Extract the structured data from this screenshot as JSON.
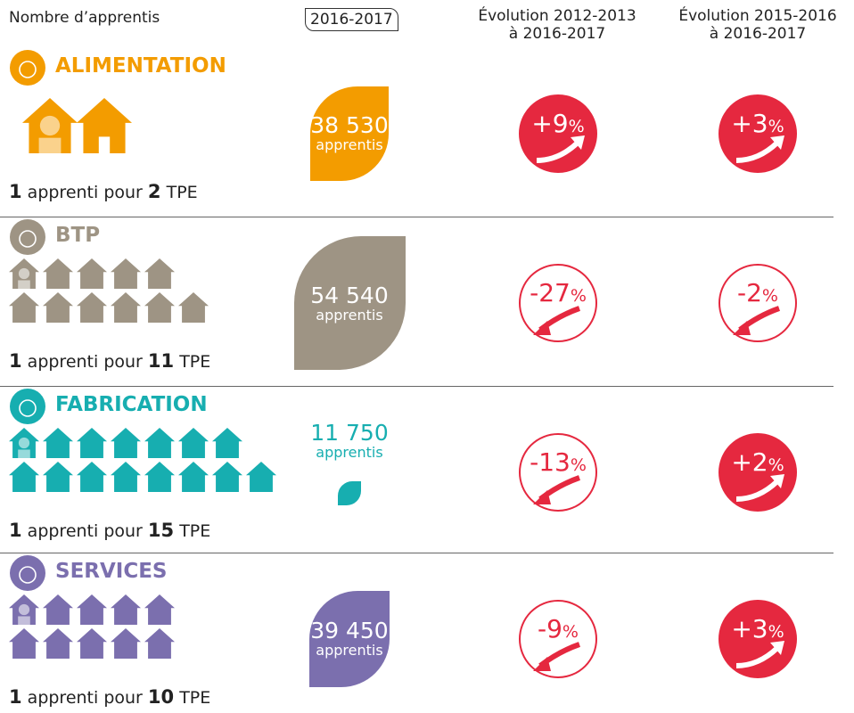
{
  "header": {
    "count_label": "Nombre d’apprentis",
    "year": "2016-2017",
    "evolution_long": [
      "Évolution 2012-2013",
      "à 2016-2017"
    ],
    "evolution_short": [
      "Évolution 2015-2016",
      "à 2016-2017"
    ]
  },
  "sectors": [
    {
      "name": "ALIMENTATION",
      "color": "#f39c00",
      "apprentices": {
        "value": 38530,
        "label": "38 530"
      },
      "unit": "apprentis",
      "ratio": {
        "apprentice": "1",
        "text": "apprenti pour",
        "tpe": 2,
        "suffix": "TPE"
      },
      "evolution_long": {
        "value": "+9",
        "unit": "%"
      },
      "evolution_short": {
        "value": "+3",
        "unit": "%"
      }
    },
    {
      "name": "BTP",
      "color": "#9e9484",
      "apprentices": {
        "value": 54540,
        "label": "54 540"
      },
      "unit": "apprentis",
      "ratio": {
        "apprentice": "1",
        "text": "apprenti pour",
        "tpe": 11,
        "suffix": "TPE"
      },
      "evolution_long": {
        "value": "-27",
        "unit": "%"
      },
      "evolution_short": {
        "value": "-2",
        "unit": "%"
      }
    },
    {
      "name": "FABRICATION",
      "color": "#17aeb0",
      "apprentices": {
        "value": 11750,
        "label": "11 750"
      },
      "unit": "apprentis",
      "ratio": {
        "apprentice": "1",
        "text": "apprenti pour",
        "tpe": 15,
        "suffix": "TPE"
      },
      "evolution_long": {
        "value": "-13",
        "unit": "%"
      },
      "evolution_short": {
        "value": "+2",
        "unit": "%"
      }
    },
    {
      "name": "SERVICES",
      "color": "#7b6fae",
      "apprentices": {
        "value": 39450,
        "label": "39 450"
      },
      "unit": "apprentis",
      "ratio": {
        "apprentice": "1",
        "text": "apprenti pour",
        "tpe": 10,
        "suffix": "TPE"
      },
      "evolution_long": {
        "value": "-9",
        "unit": "%"
      },
      "evolution_short": {
        "value": "+3",
        "unit": "%"
      }
    }
  ]
}
